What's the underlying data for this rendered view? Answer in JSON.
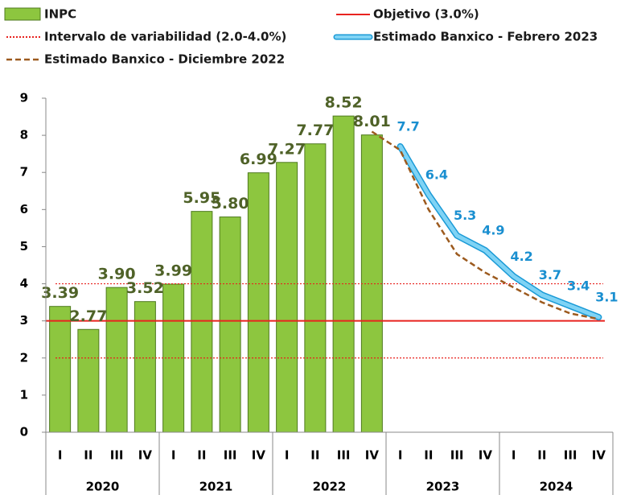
{
  "chart_data": {
    "type": "bar",
    "categories": [
      "I",
      "II",
      "III",
      "IV",
      "I",
      "II",
      "III",
      "IV",
      "I",
      "II",
      "III",
      "IV",
      "I",
      "II",
      "III",
      "IV",
      "I",
      "II",
      "III",
      "IV"
    ],
    "groups": [
      "2020",
      "2021",
      "2022",
      "2023",
      "2024"
    ],
    "series": [
      {
        "name": "INPC",
        "type": "bar",
        "color": "#8dc63f",
        "values": [
          3.39,
          2.77,
          3.9,
          3.52,
          3.99,
          5.95,
          5.8,
          6.99,
          7.27,
          7.77,
          8.52,
          8.01,
          null,
          null,
          null,
          null,
          null,
          null,
          null,
          null
        ],
        "value_labels": [
          "3.39",
          "2.77",
          "3.90",
          "3.52",
          "3.99",
          "5.95",
          "5.80",
          "6.99",
          "7.27",
          "7.77",
          "8.52",
          "8.01",
          null,
          null,
          null,
          null,
          null,
          null,
          null,
          null
        ]
      },
      {
        "name": "Estimado Banxico - Febrero 2023",
        "type": "line",
        "color": "#7fd3f5",
        "values": [
          null,
          null,
          null,
          null,
          null,
          null,
          null,
          null,
          null,
          null,
          null,
          null,
          7.7,
          6.4,
          5.3,
          4.9,
          4.2,
          3.7,
          3.4,
          3.1
        ]
      },
      {
        "name": "Estimado Banxico - Diciembre 2022",
        "type": "dashed",
        "color": "#9c5a1e",
        "values": [
          null,
          null,
          null,
          null,
          null,
          null,
          null,
          null,
          null,
          null,
          null,
          8.1,
          7.6,
          6.0,
          4.8,
          4.3,
          3.9,
          3.5,
          3.2,
          3.05
        ]
      }
    ],
    "target": {
      "name": "Objetivo (3.0%)",
      "value": 3,
      "color": "#e8231f"
    },
    "interval": {
      "name": "Intervalo de variabilidad (2.0-4.0%)",
      "values": [
        2,
        4
      ],
      "color": "#e8231f"
    },
    "ylim": [
      0,
      9
    ],
    "yticks": [
      0,
      1,
      2,
      3,
      4,
      5,
      6,
      7,
      8,
      9
    ]
  }
}
